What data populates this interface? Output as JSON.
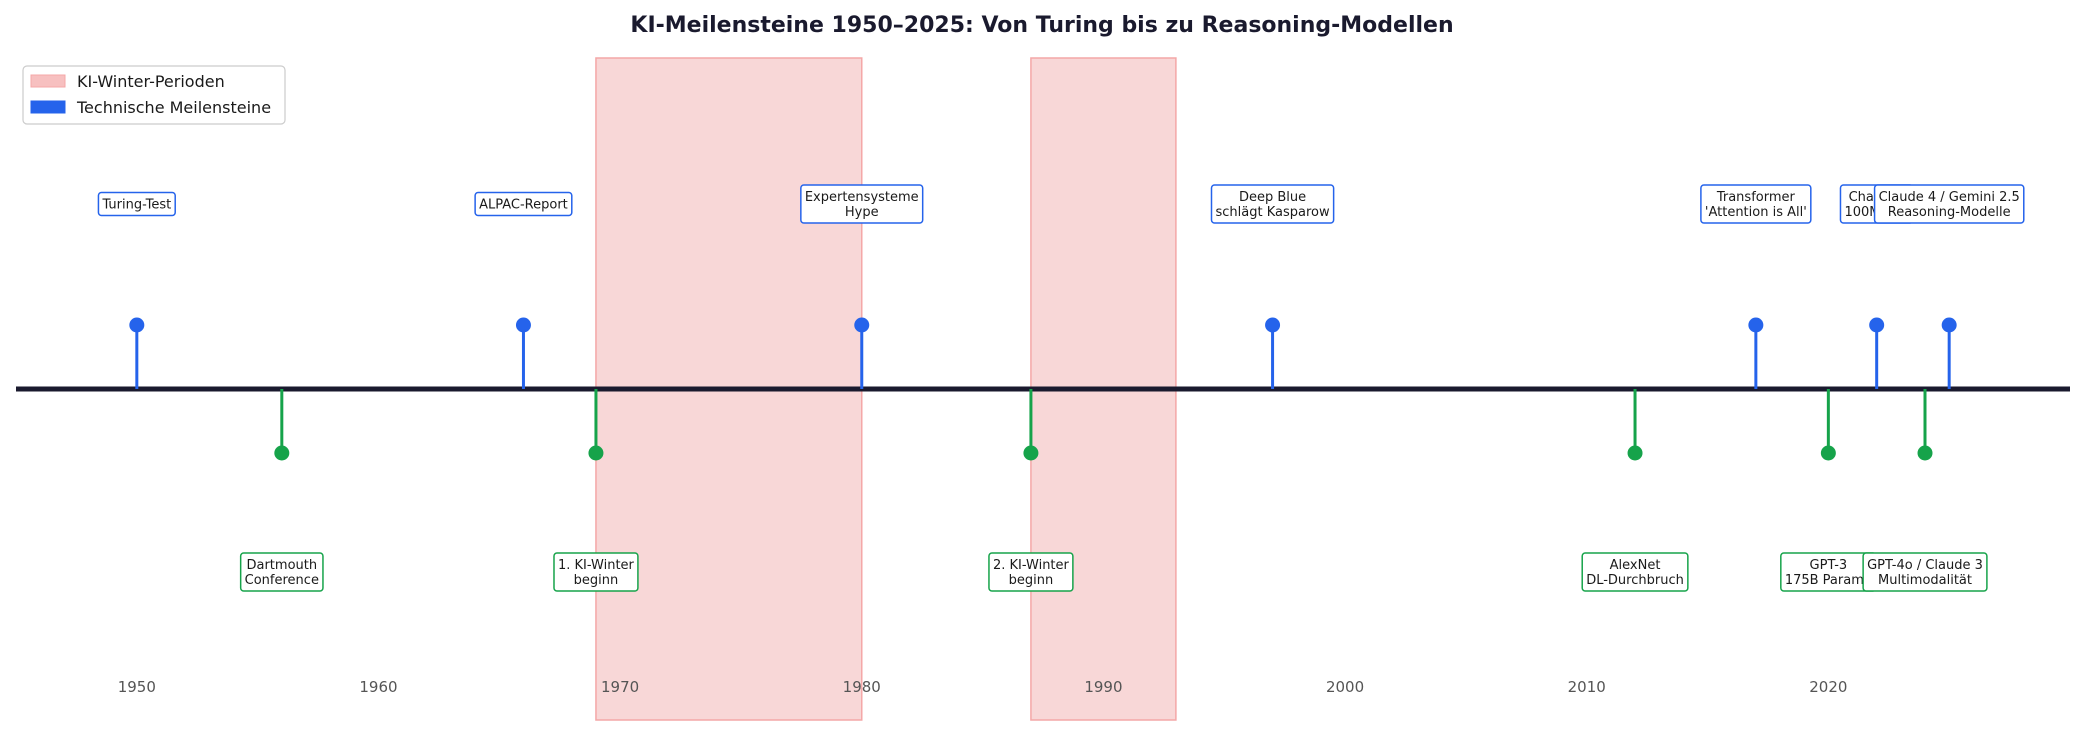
{
  "chart_data": {
    "type": "timeline",
    "title": "KI-Meilensteine 1950–2025: Von Turing bis zu Reasoning-Modellen",
    "xlim": [
      1945,
      2030
    ],
    "x_ticks": [
      1950,
      1960,
      1970,
      1980,
      1990,
      2000,
      2010,
      2020
    ],
    "legend": {
      "placement": "top-left",
      "entries": [
        {
          "label": "KI-Winter-Perioden",
          "color": "#f7c0c0"
        },
        {
          "label": "Technische Meilensteine",
          "color": "#2563eb"
        }
      ]
    },
    "winter_periods": [
      {
        "start": 1969,
        "end": 1980
      },
      {
        "start": 1987,
        "end": 1993
      }
    ],
    "events_above": [
      {
        "year": 1950,
        "lines": [
          "Turing-Test"
        ]
      },
      {
        "year": 1966,
        "lines": [
          "ALPAC-Report"
        ]
      },
      {
        "year": 1980,
        "lines": [
          "Expertensysteme",
          "Hype"
        ]
      },
      {
        "year": 1997,
        "lines": [
          "Deep Blue",
          "schlägt Kasparow"
        ]
      },
      {
        "year": 2017,
        "lines": [
          "Transformer",
          "'Attention is All'"
        ]
      },
      {
        "year": 2022,
        "lines": [
          "ChatGPT",
          "100M in 2"
        ]
      },
      {
        "year": 2025,
        "lines": [
          "Claude 4 / Gemini 2.5",
          "Reasoning-Modelle"
        ]
      }
    ],
    "events_below": [
      {
        "year": 1956,
        "lines": [
          "Dartmouth",
          "Conference"
        ]
      },
      {
        "year": 1969,
        "lines": [
          "1. KI-Winter",
          "beginn"
        ]
      },
      {
        "year": 1987,
        "lines": [
          "2. KI-Winter",
          "beginn"
        ]
      },
      {
        "year": 2012,
        "lines": [
          "AlexNet",
          "DL-Durchbruch"
        ]
      },
      {
        "year": 2020,
        "lines": [
          "GPT-3",
          "175B Parame"
        ]
      },
      {
        "year": 2024,
        "lines": [
          "GPT-4o / Claude 3",
          "Multimodalität"
        ]
      }
    ],
    "colors": {
      "above": "#2563eb",
      "below": "#16a34a",
      "axis": "#1a1a2e",
      "winter_fill": "#f5c6c6",
      "winter_edge": "#f4a7a7"
    }
  }
}
